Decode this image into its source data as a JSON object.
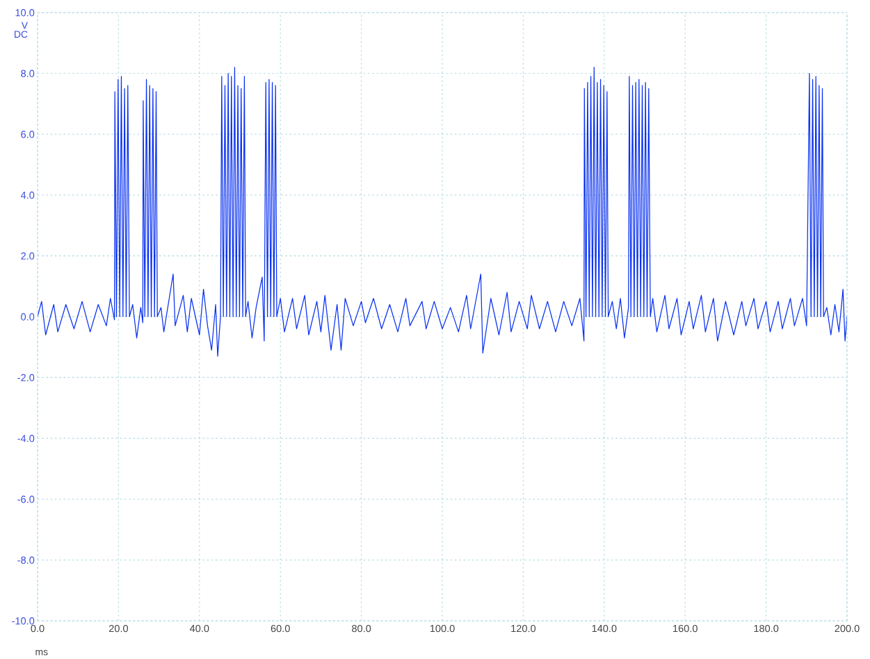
{
  "chart_data": {
    "type": "line",
    "xlabel": "ms",
    "ylabel": "V\nDC",
    "x": [
      0,
      1,
      2,
      4,
      5,
      7,
      9,
      11,
      13,
      15,
      17,
      18,
      19,
      19.1,
      19.5,
      19.9,
      20.3,
      20.7,
      21.1,
      21.5,
      21.9,
      22.3,
      22.7,
      23.5,
      24.5,
      25.5,
      26.0,
      26.1,
      26.5,
      26.9,
      27.3,
      27.7,
      28.1,
      28.5,
      28.9,
      29.3,
      29.6,
      30.5,
      31.2,
      33.5,
      34,
      36,
      37,
      38,
      40,
      41,
      42,
      43,
      44,
      44.5,
      45.2,
      45.5,
      45.9,
      46.3,
      46.7,
      47.1,
      47.5,
      47.9,
      48.3,
      48.7,
      49.1,
      49.5,
      49.9,
      50.3,
      50.7,
      51.1,
      51.4,
      52,
      53,
      54,
      55.5,
      56,
      56.4,
      56.8,
      57.2,
      57.6,
      58.0,
      58.4,
      58.8,
      59.1,
      60,
      61,
      63,
      64,
      66,
      67,
      69,
      70,
      71,
      72.5,
      74,
      75,
      76,
      78,
      80,
      81,
      83,
      85,
      87,
      89,
      91,
      92,
      95,
      96,
      98,
      100,
      102,
      104,
      106,
      107,
      109.5,
      110,
      112,
      114,
      116,
      117,
      119,
      121,
      122,
      124,
      126,
      128,
      130,
      132,
      134,
      135,
      135.1,
      135.5,
      135.9,
      136.3,
      136.7,
      137.1,
      137.5,
      137.9,
      138.3,
      138.7,
      139.1,
      139.5,
      139.9,
      140.3,
      140.7,
      141.0,
      142,
      143,
      144,
      145,
      146,
      146.2,
      146.6,
      147.0,
      147.4,
      147.8,
      148.2,
      148.6,
      149.0,
      149.4,
      149.8,
      150.2,
      150.6,
      151.0,
      151.4,
      152,
      153,
      155,
      156,
      158,
      159,
      161,
      162,
      164,
      165,
      167,
      168,
      170,
      172,
      174,
      175,
      177,
      178,
      180,
      181,
      183,
      184,
      186,
      187,
      189,
      190,
      190.7,
      191.1,
      191.5,
      191.9,
      192.3,
      192.7,
      193.1,
      193.5,
      193.9,
      194.2,
      195,
      196,
      197,
      198,
      199,
      199.5,
      200
    ],
    "series": [
      {
        "color": "#0a32f0",
        "values": [
          0.0,
          0.5,
          -0.6,
          0.4,
          -0.5,
          0.4,
          -0.4,
          0.5,
          -0.5,
          0.4,
          -0.3,
          0.6,
          -0.1,
          7.4,
          0.0,
          7.8,
          0.0,
          7.9,
          0.0,
          7.5,
          0.0,
          7.6,
          0.0,
          0.4,
          -0.7,
          0.3,
          -0.2,
          7.1,
          0.0,
          7.8,
          0.0,
          7.6,
          0.0,
          7.5,
          0.0,
          7.4,
          0.0,
          0.3,
          -0.5,
          1.4,
          -0.3,
          0.7,
          -0.5,
          0.6,
          -0.6,
          0.9,
          -0.3,
          -1.1,
          0.4,
          -1.3,
          0.0,
          7.9,
          0.0,
          7.6,
          0.0,
          8.0,
          0.0,
          7.9,
          0.0,
          8.2,
          0.0,
          7.6,
          0.0,
          7.5,
          0.0,
          7.9,
          0.0,
          0.5,
          -0.7,
          0.3,
          1.3,
          -0.8,
          7.7,
          0.0,
          7.8,
          0.0,
          7.7,
          0.0,
          7.6,
          0.0,
          0.6,
          -0.5,
          0.6,
          -0.4,
          0.7,
          -0.6,
          0.5,
          -0.5,
          0.7,
          -1.1,
          0.4,
          -1.1,
          0.6,
          -0.3,
          0.5,
          -0.2,
          0.6,
          -0.4,
          0.4,
          -0.5,
          0.6,
          -0.3,
          0.5,
          -0.4,
          0.5,
          -0.4,
          0.3,
          -0.5,
          0.7,
          -0.4,
          1.4,
          -1.2,
          0.6,
          -0.6,
          0.8,
          -0.5,
          0.5,
          -0.4,
          0.7,
          -0.4,
          0.5,
          -0.5,
          0.5,
          -0.3,
          0.6,
          -0.8,
          7.5,
          0.0,
          7.7,
          0.0,
          7.9,
          0.0,
          8.2,
          0.0,
          7.7,
          0.0,
          7.8,
          0.0,
          7.6,
          0.0,
          7.4,
          0.0,
          0.5,
          -0.4,
          0.6,
          -0.7,
          0.3,
          7.9,
          0.0,
          7.6,
          0.0,
          7.7,
          0.0,
          7.8,
          0.0,
          7.6,
          0.0,
          7.7,
          0.0,
          7.5,
          0.0,
          0.6,
          -0.5,
          0.7,
          -0.4,
          0.6,
          -0.6,
          0.5,
          -0.4,
          0.7,
          -0.5,
          0.6,
          -0.8,
          0.5,
          -0.6,
          0.5,
          -0.3,
          0.6,
          -0.4,
          0.5,
          -0.5,
          0.5,
          -0.4,
          0.6,
          -0.3,
          0.6,
          -0.3,
          8.0,
          0.0,
          7.8,
          0.0,
          7.9,
          0.0,
          7.6,
          0.0,
          7.5,
          0.0,
          0.3,
          -0.6,
          0.4,
          -0.5,
          0.9,
          -0.8,
          0.0
        ]
      }
    ],
    "xlim": [
      0,
      200
    ],
    "xticks": [
      {
        "value": 0,
        "label": "0.0"
      },
      {
        "value": 20,
        "label": "20.0"
      },
      {
        "value": 40,
        "label": "40.0"
      },
      {
        "value": 60,
        "label": "60.0"
      },
      {
        "value": 80,
        "label": "80.0"
      },
      {
        "value": 100,
        "label": "100.0"
      },
      {
        "value": 120,
        "label": "120.0"
      },
      {
        "value": 140,
        "label": "140.0"
      },
      {
        "value": 160,
        "label": "160.0"
      },
      {
        "value": 180,
        "label": "180.0"
      },
      {
        "value": 200,
        "label": "200.0"
      }
    ],
    "ylim": [
      -10,
      10
    ],
    "yticks": [
      {
        "value": -10,
        "label": "-10.0"
      },
      {
        "value": -8,
        "label": "-8.0"
      },
      {
        "value": -6,
        "label": "-6.0"
      },
      {
        "value": -4,
        "label": "-4.0"
      },
      {
        "value": -2,
        "label": "-2.0"
      },
      {
        "value": 0,
        "label": "0.0"
      },
      {
        "value": 2,
        "label": "2.0"
      },
      {
        "value": 4,
        "label": "4.0"
      },
      {
        "value": 6,
        "label": "6.0"
      },
      {
        "value": 8,
        "label": "8.0"
      },
      {
        "value": 10,
        "label": "10.0"
      }
    ],
    "grid": true,
    "marker": "none",
    "line_style": "solid"
  }
}
